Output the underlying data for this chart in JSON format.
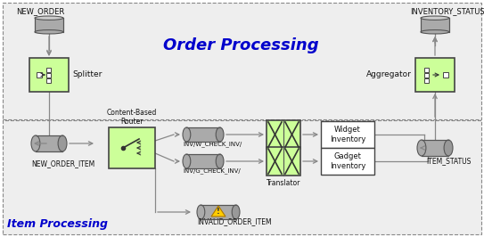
{
  "bg_color": "#ffffff",
  "green_box_color": "#ccff99",
  "white_box_color": "#ffffff",
  "title_order": "Order Processing",
  "title_item": "Item Processing",
  "label_new_order": "NEW_ORDER",
  "label_inventory_status": "INVENTORY_STATUS",
  "label_splitter": "Splitter",
  "label_aggregator": "Aggregator",
  "label_new_order_item": "NEW_ORDER_ITEM",
  "label_item_status": "ITEM_STATUS",
  "label_router": "Content-Based\nRouter",
  "label_inv_w": "INV/W_CHECK_INV/",
  "label_inv_g": "INV/G_CHECK_INV/",
  "label_invalid": "INVALID_ORDER_ITEM",
  "label_widget": "Widget\nInventory",
  "label_gadget": "Gadget\nInventory",
  "label_translator": "Translator",
  "cyl_color": "#aaaaaa",
  "cyl_dark": "#888888",
  "cyl_light": "#cccccc",
  "arrow_color": "#888888",
  "line_color": "#888888",
  "border_color": "#888888",
  "section_bg": "#f2f2f2"
}
